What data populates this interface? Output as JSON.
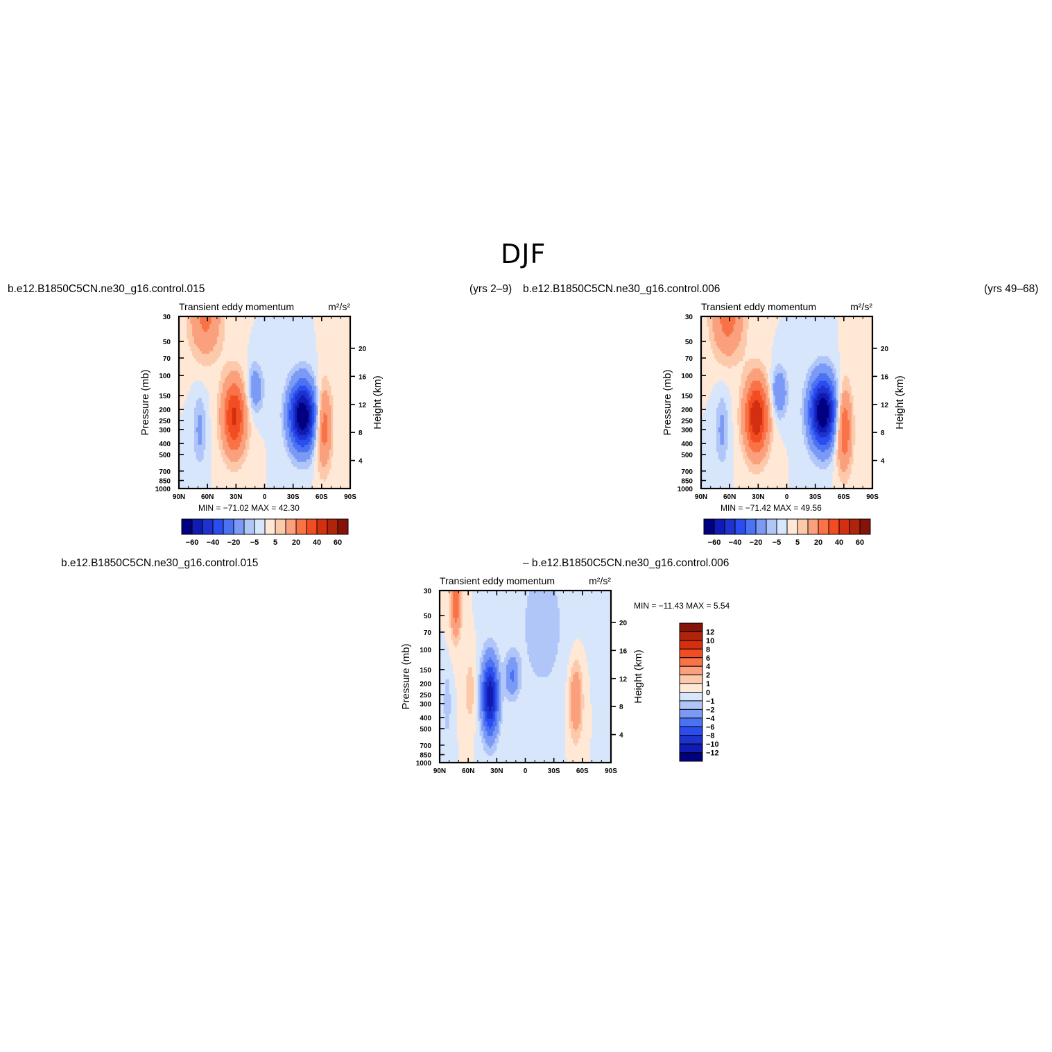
{
  "page": {
    "title": "DJF",
    "panel_a_case": "b.e12.B1850C5CN.ne30_g16.control.015",
    "panel_a_years": "(yrs  2–9)",
    "panel_b_case": "b.e12.B1850C5CN.ne30_g16.control.006",
    "panel_b_years": "(yrs  49–68)",
    "diff_case_left": "b.e12.B1850C5CN.ne30_g16.control.015",
    "diff_case_right": "–  b.e12.B1850C5CN.ne30_g16.control.006"
  },
  "colors": {
    "sig_colors": [
      "#000080",
      "#0f1bb3",
      "#1d33cc",
      "#2a4cf0",
      "#4b72f2",
      "#7a9af5",
      "#b1c6f8",
      "#d8e6fc",
      "#ffe8d6",
      "#fcc9ab",
      "#fba07c",
      "#f97347",
      "#f24d22",
      "#d32f10",
      "#b0240b",
      "#861309"
    ],
    "diff_colors": [
      "#000080",
      "#0f1bb3",
      "#1d33cc",
      "#2a4cf0",
      "#4b72f2",
      "#7a9af5",
      "#b1c6f8",
      "#d8e6fc",
      "#ffe8d6",
      "#fcc9ab",
      "#fba07c",
      "#f97347",
      "#f24d22",
      "#d32f10",
      "#b0240b",
      "#861309"
    ]
  },
  "chart_data": [
    {
      "type": "heatmap",
      "name": "panel-a",
      "title": "Transient  eddy  momentum",
      "units": "m²/s²",
      "ylabel": "Pressure  (mb)",
      "ylabel2": "Height  (km)",
      "x_ticks": [
        "90N",
        "60N",
        "30N",
        "0",
        "30S",
        "60S",
        "90S"
      ],
      "x_range": [
        90,
        -90
      ],
      "y_ticks": [
        "30",
        "50",
        "70",
        "100",
        "150",
        "200",
        "250",
        "300",
        "400",
        "500",
        "700",
        "850",
        "1000"
      ],
      "y_range": [
        1000,
        30
      ],
      "y_scale": "log",
      "y2_ticks": [
        "4",
        "8",
        "12",
        "16",
        "20"
      ],
      "stats": "MIN = −71.02   MAX =   42.30",
      "min": -71.02,
      "max": 42.3,
      "colorbar_labels": [
        "−60",
        "−40",
        "−20",
        "−5",
        "5",
        "20",
        "40",
        "60"
      ],
      "features": [
        {
          "lat": -40,
          "p": 225,
          "amp": -71,
          "wlat": 10,
          "wp": 0.48
        },
        {
          "lat": 32,
          "p": 230,
          "amp": 42,
          "wlat": 9,
          "wp": 0.55
        },
        {
          "lat": 62,
          "p": 32,
          "amp": 22,
          "wlat": 12,
          "wp": 0.55
        },
        {
          "lat": -62,
          "p": 280,
          "amp": 28,
          "wlat": 6,
          "wp": 0.6
        },
        {
          "lat": 10,
          "p": 130,
          "amp": -18,
          "wlat": 6,
          "wp": 0.35
        },
        {
          "lat": 68,
          "p": 300,
          "amp": -12,
          "wlat": 5,
          "wp": 0.5
        }
      ]
    },
    {
      "type": "heatmap",
      "name": "panel-b",
      "title": "Transient  eddy  momentum",
      "units": "m²/s²",
      "ylabel": "Pressure  (mb)",
      "ylabel2": "Height  (km)",
      "x_ticks": [
        "90N",
        "60N",
        "30N",
        "0",
        "30S",
        "60S",
        "90S"
      ],
      "x_range": [
        90,
        -90
      ],
      "y_ticks": [
        "30",
        "50",
        "70",
        "100",
        "150",
        "200",
        "250",
        "300",
        "400",
        "500",
        "700",
        "850",
        "1000"
      ],
      "y_range": [
        1000,
        30
      ],
      "y_scale": "log",
      "y2_ticks": [
        "4",
        "8",
        "12",
        "16",
        "20"
      ],
      "stats": "MIN = −71.42   MAX =   49.56",
      "min": -71.42,
      "max": 49.56,
      "colorbar_labels": [
        "−60",
        "−40",
        "−20",
        "−5",
        "5",
        "20",
        "40",
        "60"
      ],
      "features": [
        {
          "lat": -38,
          "p": 210,
          "amp": -71,
          "wlat": 10,
          "wp": 0.5
        },
        {
          "lat": 32,
          "p": 230,
          "amp": 49,
          "wlat": 9,
          "wp": 0.55
        },
        {
          "lat": 62,
          "p": 32,
          "amp": 24,
          "wlat": 12,
          "wp": 0.55
        },
        {
          "lat": -60,
          "p": 290,
          "amp": 32,
          "wlat": 6,
          "wp": 0.6
        },
        {
          "lat": 8,
          "p": 140,
          "amp": -20,
          "wlat": 6,
          "wp": 0.35
        },
        {
          "lat": 68,
          "p": 300,
          "amp": -12,
          "wlat": 5,
          "wp": 0.5
        }
      ]
    },
    {
      "type": "heatmap",
      "name": "panel-diff",
      "title": "Transient  eddy  momentum",
      "units": "m²/s²",
      "ylabel": "Pressure  (mb)",
      "ylabel2": "Height  (km)",
      "x_ticks": [
        "90N",
        "60N",
        "30N",
        "0",
        "30S",
        "60S",
        "90S"
      ],
      "x_range": [
        90,
        -90
      ],
      "y_ticks": [
        "30",
        "50",
        "70",
        "100",
        "150",
        "200",
        "250",
        "300",
        "400",
        "500",
        "700",
        "850",
        "1000"
      ],
      "y_range": [
        1000,
        30
      ],
      "y_scale": "log",
      "y2_ticks": [
        "4",
        "8",
        "12",
        "16",
        "20"
      ],
      "stats": "MIN = −11.43   MAX =    5.54",
      "min": -11.43,
      "max": 5.54,
      "colorbar_labels": [
        "12",
        "10",
        "8",
        "6",
        "4",
        "2",
        "1",
        "0",
        "−1",
        "−2",
        "−4",
        "−6",
        "−8",
        "−10",
        "−12"
      ],
      "features": [
        {
          "lat": 37,
          "p": 260,
          "amp": -11.4,
          "wlat": 6,
          "wp": 0.55
        },
        {
          "lat": 14,
          "p": 170,
          "amp": -4,
          "wlat": 5,
          "wp": 0.3
        },
        {
          "lat": 73,
          "p": 38,
          "amp": 5.5,
          "wlat": 4,
          "wp": 0.5
        },
        {
          "lat": -53,
          "p": 280,
          "amp": 4,
          "wlat": 5,
          "wp": 0.55
        },
        {
          "lat": 58,
          "p": 230,
          "amp": 1.8,
          "wlat": 4,
          "wp": 0.45
        },
        {
          "lat": 82,
          "p": 300,
          "amp": -1.8,
          "wlat": 3,
          "wp": 0.5
        },
        {
          "lat": -18,
          "p": 60,
          "amp": -1.5,
          "wlat": 20,
          "wp": 1.2
        }
      ]
    }
  ]
}
